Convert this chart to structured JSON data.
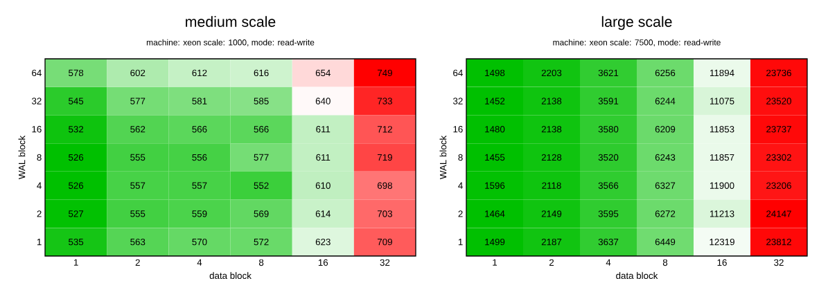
{
  "chart_data": [
    {
      "type": "heatmap",
      "data_labels": true,
      "title": "medium scale",
      "subtitle": "machine: xeon scale: 1000, mode: read-write",
      "xlabel": "data block",
      "ylabel": "WAL block",
      "categories": [
        "1",
        "2",
        "4",
        "8",
        "16",
        "32"
      ],
      "y_categories": [
        "64",
        "32",
        "16",
        "8",
        "4",
        "2",
        "1"
      ],
      "cells": [
        [
          578,
          602,
          612,
          616,
          654,
          749
        ],
        [
          545,
          577,
          581,
          585,
          640,
          733
        ],
        [
          532,
          562,
          566,
          566,
          611,
          712
        ],
        [
          526,
          555,
          556,
          577,
          611,
          719
        ],
        [
          526,
          557,
          557,
          552,
          610,
          698
        ],
        [
          527,
          555,
          559,
          569,
          614,
          703
        ],
        [
          535,
          563,
          570,
          572,
          623,
          709
        ]
      ]
    },
    {
      "type": "heatmap",
      "data_labels": true,
      "title": "large scale",
      "subtitle": "machine: xeon scale: 7500, mode: read-write",
      "xlabel": "data block",
      "ylabel": "WAL block",
      "categories": [
        "1",
        "2",
        "4",
        "8",
        "16",
        "32"
      ],
      "y_categories": [
        "64",
        "32",
        "16",
        "8",
        "4",
        "2",
        "1"
      ],
      "cells": [
        [
          1498,
          2203,
          3621,
          6256,
          11894,
          23736
        ],
        [
          1452,
          2138,
          3591,
          6244,
          11075,
          23520
        ],
        [
          1480,
          2138,
          3580,
          6209,
          11853,
          23737
        ],
        [
          1455,
          2128,
          3520,
          6243,
          11857,
          23302
        ],
        [
          1596,
          2118,
          3566,
          6327,
          11900,
          23206
        ],
        [
          1464,
          2149,
          3595,
          6272,
          11213,
          24147
        ],
        [
          1499,
          2187,
          3637,
          6449,
          12319,
          23812
        ]
      ]
    }
  ]
}
